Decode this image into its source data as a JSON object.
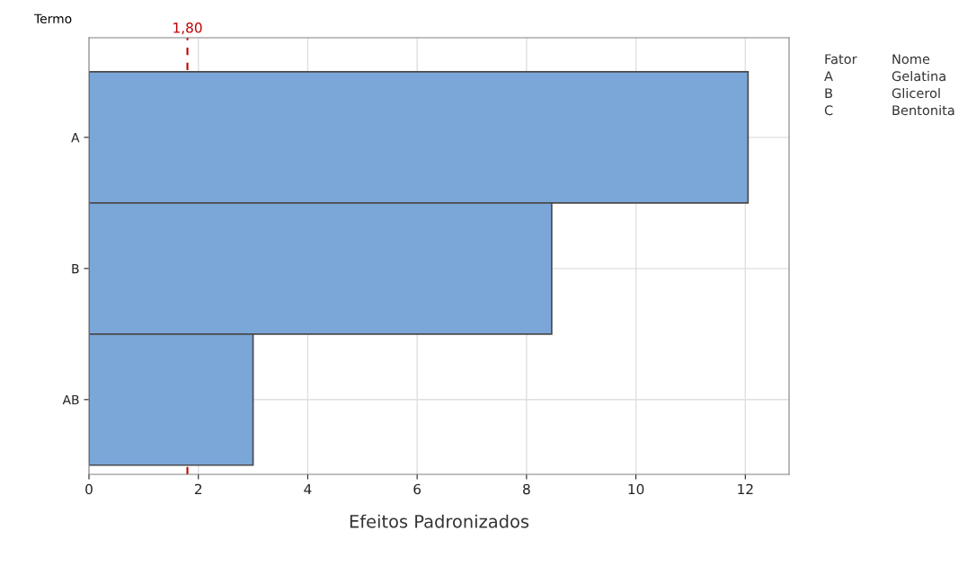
{
  "chart_data": {
    "type": "bar",
    "orientation": "horizontal",
    "categories": [
      "A",
      "B",
      "AB"
    ],
    "values": [
      12.05,
      8.46,
      3.0
    ],
    "color": "#7ba6d8",
    "xlim": [
      0,
      12.8
    ],
    "xticks": [
      0,
      2,
      4,
      6,
      8,
      10,
      12
    ],
    "xlabel": "Efeitos Padronizados",
    "ylabel": "Termo",
    "grid": true,
    "ref_lines": [
      {
        "axis": "x",
        "value": 1.8,
        "label": "1,80",
        "color": "#c00000",
        "line_style": "dashed"
      }
    ],
    "annotations": [
      "Fator",
      "Nome",
      "A",
      "Gelatina",
      "B",
      "Glicerol",
      "C",
      "Bentonita"
    ]
  }
}
